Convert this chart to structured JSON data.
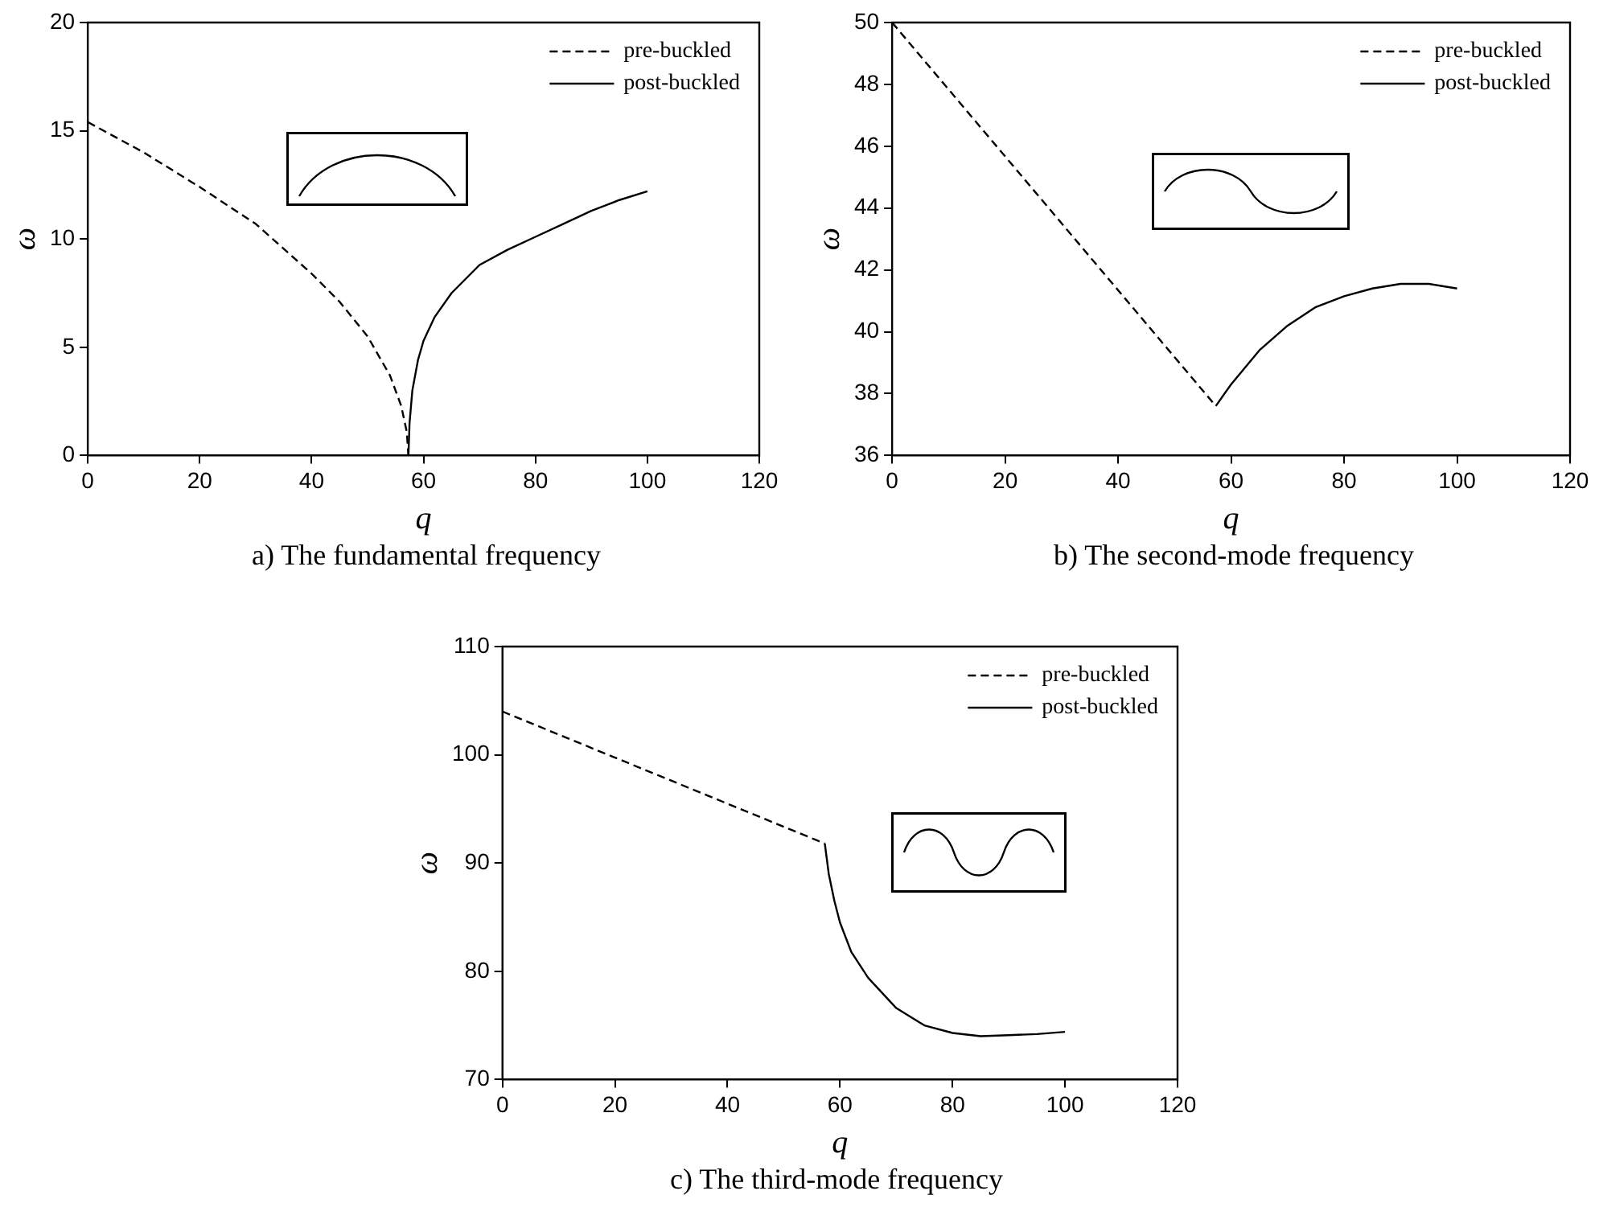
{
  "chart_data": [
    {
      "type": "line",
      "title": "a) The fundamental frequency",
      "xlabel": "q",
      "ylabel": "ω",
      "xlim": [
        0,
        120
      ],
      "xticks": [
        0,
        20,
        40,
        60,
        80,
        100,
        120
      ],
      "ylim": [
        0,
        20
      ],
      "yticks": [
        0,
        5,
        10,
        15,
        20
      ],
      "legend": "top right",
      "series": [
        {
          "name": "pre-buckled",
          "color": "#000000",
          "line_style": "dashed",
          "x": [
            0,
            10,
            20,
            30,
            40,
            45,
            50,
            54,
            56,
            57,
            57.3
          ],
          "values": [
            15.4,
            14.0,
            12.4,
            10.7,
            8.4,
            7.1,
            5.5,
            3.7,
            2.3,
            1.1,
            0
          ]
        },
        {
          "name": "post-buckled",
          "color": "#000000",
          "line_style": "solid",
          "x": [
            57.3,
            57.5,
            58,
            59,
            60,
            62,
            65,
            70,
            75,
            80,
            85,
            90,
            95,
            100
          ],
          "values": [
            0,
            1.5,
            3.0,
            4.4,
            5.3,
            6.4,
            7.5,
            8.8,
            9.5,
            10.1,
            10.7,
            11.3,
            11.8,
            12.2
          ]
        }
      ]
    },
    {
      "type": "line",
      "title": "b) The second-mode frequency",
      "xlabel": "q",
      "ylabel": "ω",
      "xlim": [
        0,
        120
      ],
      "xticks": [
        0,
        20,
        40,
        60,
        80,
        100,
        120
      ],
      "ylim": [
        36,
        50
      ],
      "yticks": [
        36,
        38,
        40,
        42,
        44,
        46,
        48,
        50
      ],
      "legend": "top right",
      "series": [
        {
          "name": "pre-buckled",
          "color": "#000000",
          "line_style": "dashed",
          "x": [
            0,
            57.3
          ],
          "values": [
            50,
            37.6
          ]
        },
        {
          "name": "post-buckled",
          "color": "#000000",
          "line_style": "solid",
          "x": [
            57.3,
            60,
            65,
            70,
            75,
            80,
            85,
            90,
            95,
            100
          ],
          "values": [
            37.6,
            38.3,
            39.4,
            40.2,
            40.8,
            41.15,
            41.4,
            41.55,
            41.55,
            41.4
          ]
        }
      ]
    },
    {
      "type": "line",
      "title": "c) The third-mode frequency",
      "xlabel": "q",
      "ylabel": "ω",
      "xlim": [
        0,
        120
      ],
      "xticks": [
        0,
        20,
        40,
        60,
        80,
        100,
        120
      ],
      "ylim": [
        70,
        110
      ],
      "yticks": [
        70,
        80,
        90,
        100,
        110
      ],
      "legend": "top right",
      "series": [
        {
          "name": "pre-buckled",
          "color": "#000000",
          "line_style": "dashed",
          "x": [
            0,
            57.3
          ],
          "values": [
            104,
            91.8
          ]
        },
        {
          "name": "post-buckled",
          "color": "#000000",
          "line_style": "solid",
          "x": [
            57.3,
            58,
            59,
            60,
            62,
            65,
            70,
            75,
            80,
            85,
            90,
            95,
            100
          ],
          "values": [
            91.8,
            89.0,
            86.5,
            84.5,
            81.8,
            79.4,
            76.6,
            75.0,
            74.3,
            74.0,
            74.1,
            74.2,
            74.4
          ]
        }
      ]
    }
  ]
}
